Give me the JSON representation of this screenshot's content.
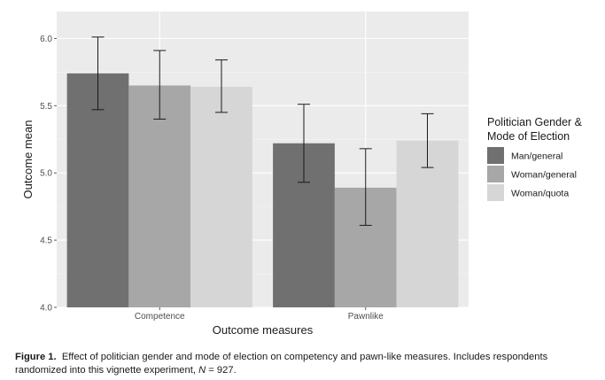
{
  "chart_data": {
    "type": "bar",
    "title": "",
    "xlabel": "Outcome measures",
    "ylabel": "Outcome mean",
    "ylim": [
      4.0,
      6.2
    ],
    "yticks": [
      "4.0",
      "4.5",
      "5.0",
      "5.5",
      "6.0"
    ],
    "categories": [
      "Competence",
      "Pawnlike"
    ],
    "series": [
      {
        "name": "Man/general",
        "values": [
          5.74,
          5.22
        ],
        "error_low": [
          5.47,
          4.93
        ],
        "error_high": [
          6.01,
          5.51
        ],
        "color": "#707070"
      },
      {
        "name": "Woman/general",
        "values": [
          5.65,
          4.89
        ],
        "error_low": [
          5.4,
          4.61
        ],
        "error_high": [
          5.91,
          5.18
        ],
        "color": "#a7a7a7"
      },
      {
        "name": "Woman/quota",
        "values": [
          5.64,
          5.24
        ],
        "error_low": [
          5.45,
          5.04
        ],
        "error_high": [
          5.84,
          5.44
        ],
        "color": "#d6d6d6"
      }
    ],
    "legend_title": [
      "Politician Gender &",
      "Mode of Election"
    ],
    "legend_position": "right",
    "grid": true,
    "panel_background": "#ebebeb"
  },
  "caption": {
    "label": "Figure 1.",
    "text_before_n": "Effect of politician gender and mode of election on competency and pawn-like measures. Includes respondents randomized into this vignette experiment, ",
    "n_symbol": "N",
    "n_value": " = 927."
  }
}
